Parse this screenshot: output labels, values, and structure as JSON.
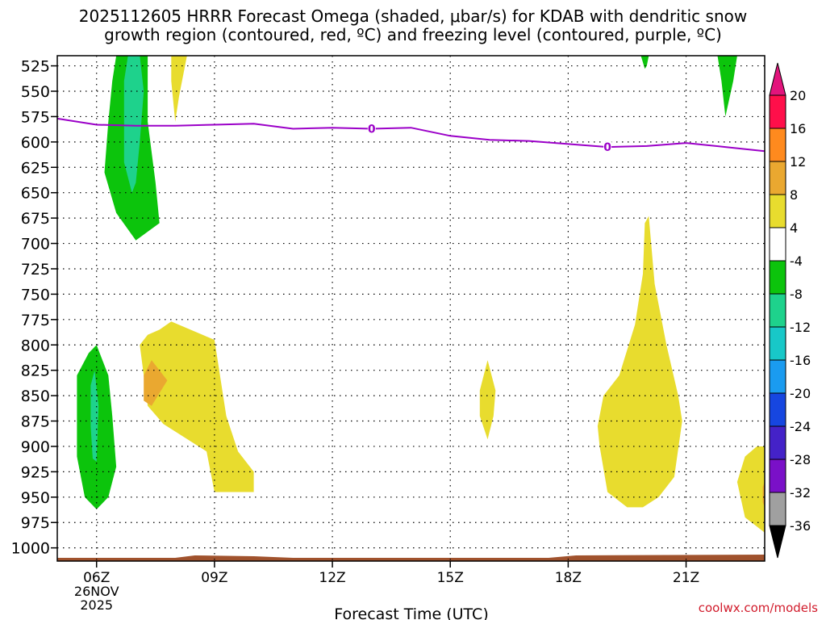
{
  "title": {
    "line1": "2025112605 HRRR Forecast Omega (shaded, μbar/s) for KDAB with dendritic snow",
    "line2": "growth region (contoured, red, ºC) and freezing level (contoured, purple, ºC)"
  },
  "credit": "coolwx.com/models",
  "colors": {
    "ground": "#a0522d",
    "freezing_level": "#9b00c8",
    "grid": "#000000"
  },
  "chart_data": {
    "type": "contour",
    "xlabel": "Forecast Time (UTC)",
    "ylabel": "",
    "x_units": "hours since 2025-11-26 00Z",
    "xlim": [
      5.0,
      23.0
    ],
    "ylim": [
      1013,
      515
    ],
    "y_ticks": [
      525,
      550,
      575,
      600,
      625,
      650,
      675,
      700,
      725,
      750,
      775,
      800,
      825,
      850,
      875,
      900,
      925,
      950,
      975,
      1000
    ],
    "x_ticks": [
      {
        "x": 6,
        "label": "06Z",
        "sub1": "26NOV",
        "sub2": "2025"
      },
      {
        "x": 9,
        "label": "09Z",
        "sub1": "",
        "sub2": ""
      },
      {
        "x": 12,
        "label": "12Z",
        "sub1": "",
        "sub2": ""
      },
      {
        "x": 15,
        "label": "15Z",
        "sub1": "",
        "sub2": ""
      },
      {
        "x": 18,
        "label": "18Z",
        "sub1": "",
        "sub2": ""
      },
      {
        "x": 21,
        "label": "21Z",
        "sub1": "",
        "sub2": ""
      }
    ],
    "colorbar": {
      "label_values": [
        20,
        16,
        12,
        8,
        4,
        -4,
        -8,
        -12,
        -16,
        -20,
        -24,
        -28,
        -32,
        -36
      ],
      "bands": [
        {
          "color": "#ff0f4a"
        },
        {
          "color": "#ff8a1e"
        },
        {
          "color": "#eaa830"
        },
        {
          "color": "#e8dc2e"
        },
        {
          "color": "#ffffff"
        },
        {
          "color": "#0cc40c"
        },
        {
          "color": "#1ed28c"
        },
        {
          "color": "#18c8c8"
        },
        {
          "color": "#1a9bf0"
        },
        {
          "color": "#1646e0"
        },
        {
          "color": "#4422c8"
        },
        {
          "color": "#7a10c8"
        },
        {
          "color": "#a0a0a0"
        }
      ],
      "top_arrow_color": "#e2147c",
      "bottom_arrow_color": "#000000"
    },
    "omega_regions": [
      {
        "name": "ascent upper early",
        "value": -6,
        "color": "#0cc40c",
        "points": [
          [
            6.5,
            515
          ],
          [
            7.3,
            515
          ],
          [
            7.3,
            580
          ],
          [
            7.5,
            640
          ],
          [
            7.6,
            680
          ],
          [
            7.0,
            697
          ],
          [
            6.5,
            670
          ],
          [
            6.2,
            630
          ],
          [
            6.3,
            580
          ],
          [
            6.4,
            540
          ]
        ]
      },
      {
        "name": "ascent upper early core",
        "value": -10,
        "color": "#1ed28c",
        "points": [
          [
            6.8,
            515
          ],
          [
            7.1,
            515
          ],
          [
            7.2,
            550
          ],
          [
            7.1,
            600
          ],
          [
            7.0,
            640
          ],
          [
            6.9,
            650
          ],
          [
            6.7,
            620
          ],
          [
            6.7,
            580
          ],
          [
            6.7,
            540
          ]
        ]
      },
      {
        "name": "descent upper",
        "value": 5,
        "color": "#e8dc2e",
        "points": [
          [
            7.9,
            515
          ],
          [
            8.3,
            515
          ],
          [
            8.1,
            555
          ],
          [
            8.0,
            580
          ],
          [
            7.9,
            540
          ]
        ]
      },
      {
        "name": "ascent upper late",
        "value": -6,
        "color": "#0cc40c",
        "points": [
          [
            21.8,
            515
          ],
          [
            22.3,
            515
          ],
          [
            22.2,
            540
          ],
          [
            22.0,
            575
          ],
          [
            21.9,
            540
          ]
        ]
      },
      {
        "name": "ascent upper late small",
        "value": -5,
        "color": "#0cc40c",
        "points": [
          [
            19.85,
            515
          ],
          [
            20.05,
            515
          ],
          [
            20.0,
            525
          ],
          [
            19.95,
            528
          ]
        ]
      },
      {
        "name": "ascent low early",
        "value": -6,
        "color": "#0cc40c",
        "points": [
          [
            5.5,
            830
          ],
          [
            5.8,
            808
          ],
          [
            6.0,
            800
          ],
          [
            6.3,
            830
          ],
          [
            6.4,
            870
          ],
          [
            6.5,
            920
          ],
          [
            6.3,
            950
          ],
          [
            6.0,
            962
          ],
          [
            5.7,
            950
          ],
          [
            5.5,
            910
          ]
        ]
      },
      {
        "name": "ascent low early core",
        "value": -10,
        "color": "#1ed28c",
        "points": [
          [
            5.85,
            840
          ],
          [
            5.95,
            825
          ],
          [
            6.05,
            860
          ],
          [
            6.0,
            915
          ],
          [
            5.9,
            912
          ],
          [
            5.85,
            880
          ]
        ]
      },
      {
        "name": "descent low early",
        "value": 5,
        "color": "#e8dc2e",
        "points": [
          [
            7.6,
            785
          ],
          [
            7.9,
            777
          ],
          [
            9.0,
            795
          ],
          [
            9.3,
            870
          ],
          [
            9.6,
            905
          ],
          [
            10.0,
            925
          ],
          [
            10.0,
            945
          ],
          [
            9.5,
            945
          ],
          [
            9.0,
            945
          ],
          [
            8.8,
            905
          ],
          [
            7.7,
            878
          ],
          [
            7.3,
            860
          ],
          [
            7.1,
            800
          ],
          [
            7.3,
            790
          ]
        ]
      },
      {
        "name": "descent low early core",
        "value": 10,
        "color": "#eaa830",
        "points": [
          [
            7.2,
            830
          ],
          [
            7.4,
            815
          ],
          [
            7.8,
            835
          ],
          [
            7.4,
            860
          ],
          [
            7.2,
            855
          ]
        ]
      },
      {
        "name": "descent 16Z",
        "value": 5,
        "color": "#e8dc2e",
        "points": [
          [
            15.75,
            845
          ],
          [
            15.95,
            815
          ],
          [
            16.15,
            845
          ],
          [
            16.1,
            870
          ],
          [
            15.95,
            893
          ],
          [
            15.75,
            870
          ]
        ]
      },
      {
        "name": "descent 20Z",
        "value": 5,
        "color": "#e8dc2e",
        "points": [
          [
            19.95,
            680
          ],
          [
            20.05,
            673
          ],
          [
            20.2,
            740
          ],
          [
            20.5,
            800
          ],
          [
            20.8,
            850
          ],
          [
            20.9,
            875
          ],
          [
            20.7,
            930
          ],
          [
            20.3,
            950
          ],
          [
            19.9,
            960
          ],
          [
            19.5,
            960
          ],
          [
            19.0,
            945
          ],
          [
            18.8,
            900
          ],
          [
            18.75,
            880
          ],
          [
            18.9,
            850
          ],
          [
            19.3,
            830
          ],
          [
            19.7,
            780
          ],
          [
            19.9,
            730
          ]
        ]
      },
      {
        "name": "descent 23Z",
        "value": 5,
        "color": "#e8dc2e",
        "points": [
          [
            23.0,
            900
          ],
          [
            23.0,
            985
          ],
          [
            22.5,
            970
          ],
          [
            22.3,
            935
          ],
          [
            22.5,
            910
          ],
          [
            22.8,
            900
          ]
        ]
      },
      {
        "name": "descent 23Z core",
        "value": 10,
        "color": "#eaa830",
        "points": [
          [
            22.95,
            940
          ],
          [
            23.0,
            935
          ],
          [
            23.0,
            960
          ],
          [
            22.95,
            955
          ]
        ]
      }
    ],
    "freezing_level": {
      "name": "freezing level",
      "value": 0,
      "points": [
        [
          5.0,
          577
        ],
        [
          6.0,
          583
        ],
        [
          7.0,
          584
        ],
        [
          8.0,
          584
        ],
        [
          9.0,
          583
        ],
        [
          10.0,
          582
        ],
        [
          11.0,
          587
        ],
        [
          12.0,
          586
        ],
        [
          13.0,
          587
        ],
        [
          14.0,
          586
        ],
        [
          15.0,
          594
        ],
        [
          16.0,
          598
        ],
        [
          17.0,
          599
        ],
        [
          18.0,
          602
        ],
        [
          19.0,
          605
        ],
        [
          20.0,
          604
        ],
        [
          21.0,
          601
        ],
        [
          22.0,
          605
        ],
        [
          23.0,
          609
        ]
      ],
      "labels": [
        {
          "x": 13.0,
          "y": 587,
          "text": "0"
        },
        {
          "x": 19.0,
          "y": 605,
          "text": "0"
        }
      ]
    },
    "ground_level_hpa": 1013
  }
}
